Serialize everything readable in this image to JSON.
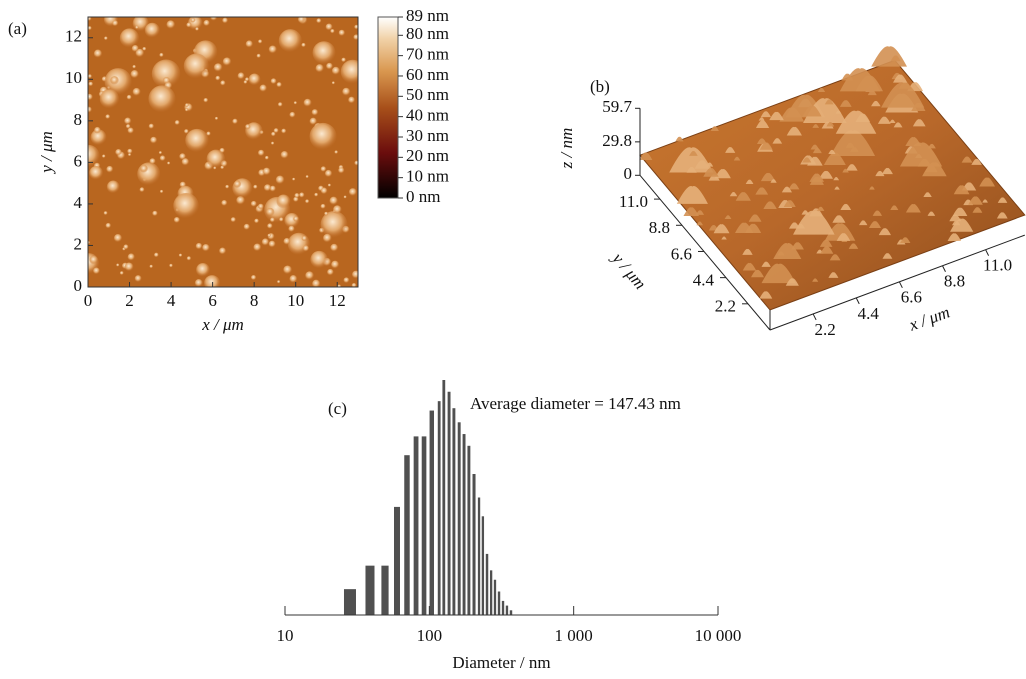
{
  "chart_data": [
    {
      "type": "heatmap",
      "panel_label": "(a)",
      "xlabel": "x / μm",
      "ylabel": "y / μm",
      "xlim": [
        0,
        13
      ],
      "ylim": [
        0,
        13
      ],
      "xticks": [
        0,
        2,
        4,
        6,
        8,
        10,
        12
      ],
      "yticks": [
        0,
        2,
        4,
        6,
        8,
        10,
        12
      ],
      "colorbar": {
        "lim": [
          0,
          89
        ],
        "ticks": [
          {
            "value": 0,
            "label": "0 nm"
          },
          {
            "value": 10,
            "label": "10 nm"
          },
          {
            "value": 20,
            "label": "20 nm"
          },
          {
            "value": 30,
            "label": "30 nm"
          },
          {
            "value": 40,
            "label": "40 nm"
          },
          {
            "value": 50,
            "label": "50 nm"
          },
          {
            "value": 60,
            "label": "60 nm"
          },
          {
            "value": 70,
            "label": "70 nm"
          },
          {
            "value": 80,
            "label": "80 nm"
          },
          {
            "value": 89,
            "label": "89 nm"
          }
        ]
      }
    },
    {
      "type": "surface",
      "panel_label": "(b)",
      "xlabel": "x / μm",
      "ylabel": "y / μm",
      "zlabel": "z / nm",
      "xlim": [
        0,
        13
      ],
      "ylim": [
        0,
        13
      ],
      "zlim": [
        0,
        59.7
      ],
      "xticks": [
        2.2,
        4.4,
        6.6,
        8.8,
        {
          "value": 11,
          "label": "11.0"
        }
      ],
      "yticks": [
        2.2,
        4.4,
        6.6,
        8.8,
        {
          "value": 11,
          "label": "11.0"
        }
      ],
      "zticks": [
        0,
        29.8,
        59.7
      ]
    },
    {
      "type": "histogram",
      "panel_label": "(c)",
      "xlabel": "Diameter / nm",
      "annotation": "Average diameter = 147.43 nm",
      "log_x": true,
      "color": "#505050",
      "xlim": [
        10,
        10000
      ],
      "xticks": [
        10,
        100,
        {
          "value": 1000,
          "label": "1 000"
        },
        {
          "value": 10000,
          "label": "10 000"
        }
      ],
      "x": [
        28.2,
        38.8,
        49.3,
        59.7,
        70,
        80.9,
        91.9,
        104,
        117,
        126,
        137,
        148,
        161,
        174,
        188,
        204,
        221,
        235,
        251,
        268,
        285,
        304,
        324,
        345,
        368
      ],
      "values": [
        11,
        21,
        21,
        46,
        68,
        76,
        76,
        87,
        91,
        100,
        95,
        88,
        82,
        77,
        72,
        60,
        50,
        42,
        26,
        19,
        15,
        10,
        6,
        4,
        2
      ]
    }
  ]
}
